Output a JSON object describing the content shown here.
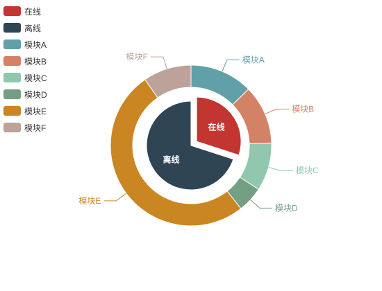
{
  "chart_data": {
    "type": "pie",
    "inner_series": {
      "shape": "pie",
      "slices": [
        {
          "name": "在线",
          "value": 300,
          "color": "#c23531",
          "selected": true
        },
        {
          "name": "离线",
          "value": 700,
          "color": "#2f4554",
          "selected": false
        }
      ]
    },
    "outer_series": {
      "shape": "ring",
      "slices": [
        {
          "name": "模块A",
          "value": 98,
          "color": "#61a0a8"
        },
        {
          "name": "模块B",
          "value": 92,
          "color": "#d48265"
        },
        {
          "name": "模块C",
          "value": 75,
          "color": "#91c7ae"
        },
        {
          "name": "模块D",
          "value": 40,
          "color": "#749f83"
        },
        {
          "name": "模块E",
          "value": 395,
          "color": "#ca8622"
        },
        {
          "name": "模块F",
          "value": 75,
          "color": "#bda29a"
        }
      ]
    },
    "legend": {
      "position": "top-left",
      "items": [
        {
          "name": "在线",
          "color": "#c23531"
        },
        {
          "name": "离线",
          "color": "#2f4554"
        },
        {
          "name": "模块A",
          "color": "#61a0a8"
        },
        {
          "name": "模块B",
          "color": "#d48265"
        },
        {
          "name": "模块C",
          "color": "#91c7ae"
        },
        {
          "name": "模块D",
          "color": "#749f83"
        },
        {
          "name": "模块E",
          "color": "#ca8622"
        },
        {
          "name": "模块F",
          "color": "#bda29a"
        }
      ]
    }
  }
}
